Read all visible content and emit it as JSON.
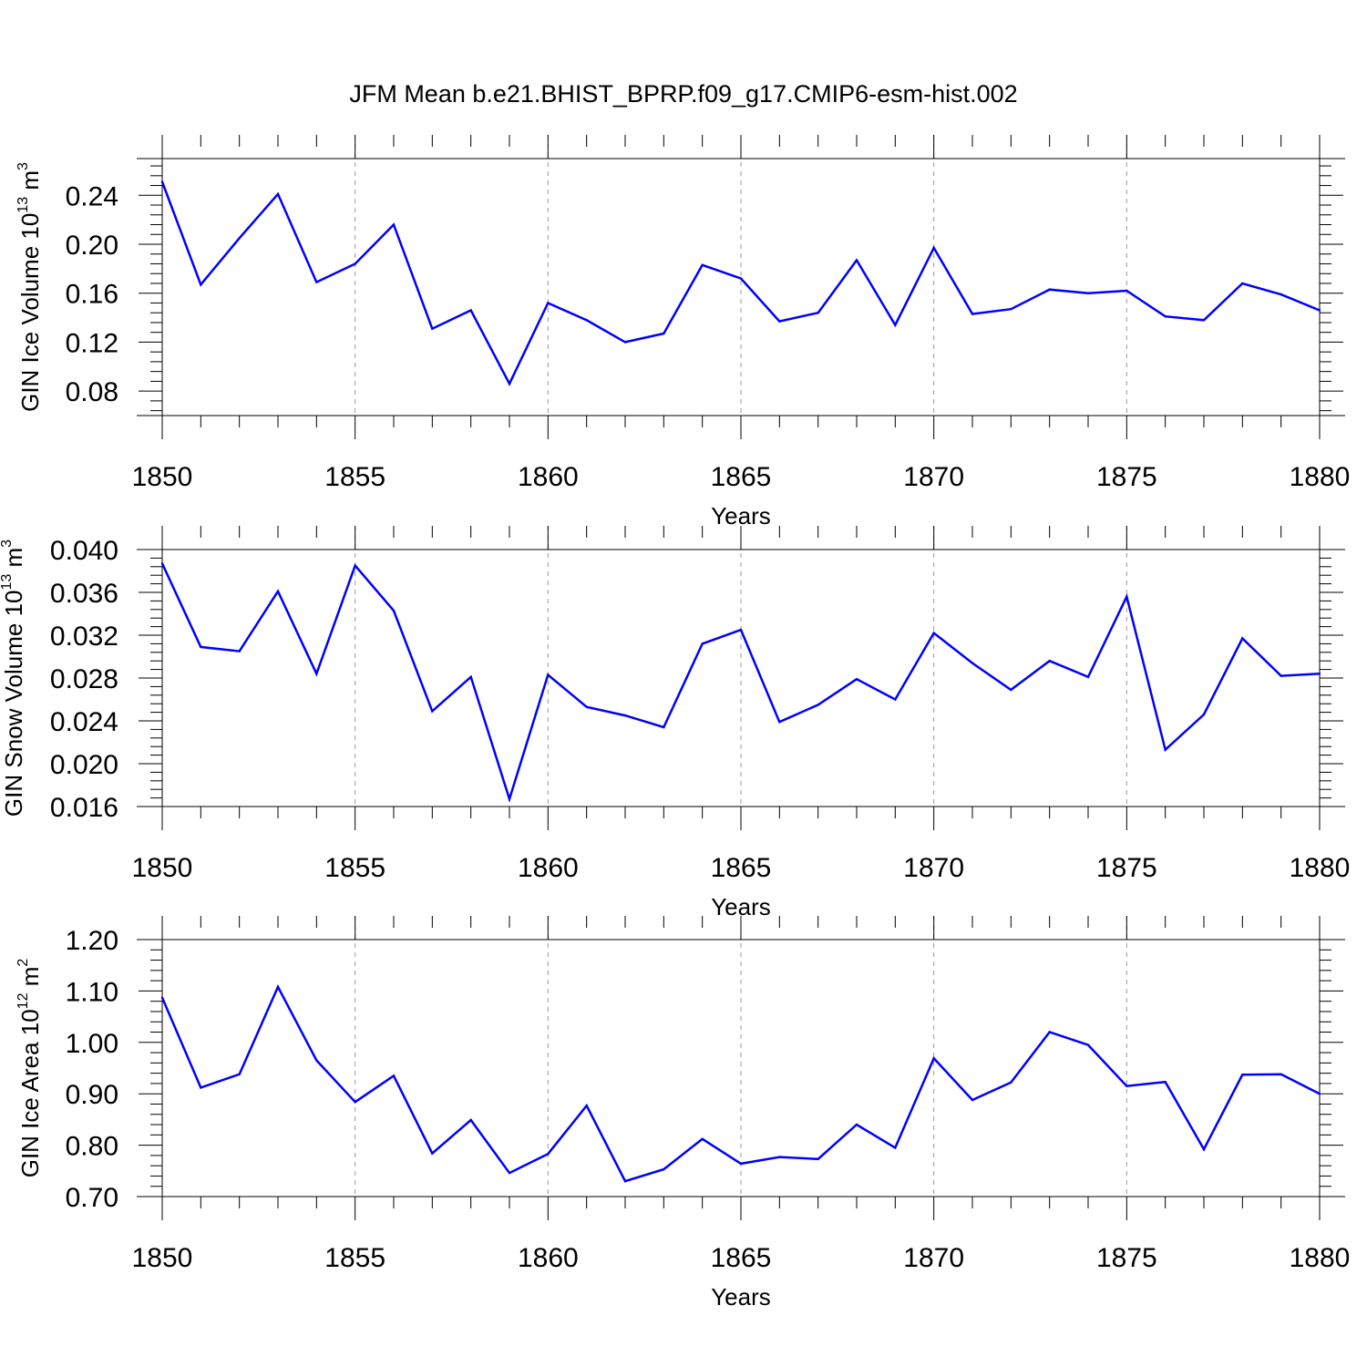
{
  "title": "JFM Mean b.e21.BHIST_BPRP.f09_g17.CMIP6-esm-hist.002",
  "line_color": "#0000ff",
  "chart_data": [
    {
      "type": "line",
      "xlabel": "Years",
      "ylabel": {
        "prefix": "GIN Ice Volume 10",
        "exp": "13",
        "unit": " m",
        "unit_exp": "3"
      },
      "xlim": [
        1850,
        1880
      ],
      "ylim": [
        0.06,
        0.27
      ],
      "xticks": [
        1850,
        1855,
        1860,
        1865,
        1870,
        1875,
        1880
      ],
      "xtick_labels": [
        "1850",
        "1855",
        "1860",
        "1865",
        "1870",
        "1875",
        "1880"
      ],
      "yticks": [
        0.08,
        0.12,
        0.16,
        0.2,
        0.24
      ],
      "ytick_labels": [
        "0.08",
        "0.12",
        "0.16",
        "0.20",
        "0.24"
      ],
      "grid": "dashed vertical at major x ticks",
      "x": [
        1850,
        1851,
        1852,
        1853,
        1854,
        1855,
        1856,
        1857,
        1858,
        1859,
        1860,
        1861,
        1862,
        1863,
        1864,
        1865,
        1866,
        1867,
        1868,
        1869,
        1870,
        1871,
        1872,
        1873,
        1874,
        1875,
        1876,
        1877,
        1878,
        1879,
        1880
      ],
      "y": [
        0.251,
        0.167,
        0.205,
        0.241,
        0.169,
        0.184,
        0.216,
        0.131,
        0.146,
        0.086,
        0.152,
        0.138,
        0.12,
        0.127,
        0.183,
        0.172,
        0.137,
        0.144,
        0.187,
        0.134,
        0.197,
        0.143,
        0.147,
        0.163,
        0.16,
        0.162,
        0.141,
        0.138,
        0.168,
        0.159,
        0.146
      ]
    },
    {
      "type": "line",
      "xlabel": "Years",
      "ylabel": {
        "prefix": "GIN Snow Volume 10",
        "exp": "13",
        "unit": " m",
        "unit_exp": "3"
      },
      "xlim": [
        1850,
        1880
      ],
      "ylim": [
        0.016,
        0.04
      ],
      "xticks": [
        1850,
        1855,
        1860,
        1865,
        1870,
        1875,
        1880
      ],
      "xtick_labels": [
        "1850",
        "1855",
        "1860",
        "1865",
        "1870",
        "1875",
        "1880"
      ],
      "yticks": [
        0.016,
        0.02,
        0.024,
        0.028,
        0.032,
        0.036,
        0.04
      ],
      "ytick_labels": [
        "0.016",
        "0.020",
        "0.024",
        "0.028",
        "0.032",
        "0.036",
        "0.040"
      ],
      "grid": "dashed vertical at major x ticks",
      "x": [
        1850,
        1851,
        1852,
        1853,
        1854,
        1855,
        1856,
        1857,
        1858,
        1859,
        1860,
        1861,
        1862,
        1863,
        1864,
        1865,
        1866,
        1867,
        1868,
        1869,
        1870,
        1871,
        1872,
        1873,
        1874,
        1875,
        1876,
        1877,
        1878,
        1879,
        1880
      ],
      "y": [
        0.0387,
        0.0309,
        0.0305,
        0.0361,
        0.0284,
        0.0385,
        0.0343,
        0.0249,
        0.0281,
        0.0167,
        0.0283,
        0.0253,
        0.0245,
        0.0234,
        0.0312,
        0.0325,
        0.0239,
        0.0255,
        0.0279,
        0.026,
        0.0322,
        0.0294,
        0.0269,
        0.0296,
        0.0281,
        0.0356,
        0.0213,
        0.0246,
        0.0317,
        0.0282,
        0.0284
      ]
    },
    {
      "type": "line",
      "xlabel": "Years",
      "ylabel": {
        "prefix": "GIN Ice Area 10",
        "exp": "12",
        "unit": " m",
        "unit_exp": "2"
      },
      "xlim": [
        1850,
        1880
      ],
      "ylim": [
        0.7,
        1.2
      ],
      "xticks": [
        1850,
        1855,
        1860,
        1865,
        1870,
        1875,
        1880
      ],
      "xtick_labels": [
        "1850",
        "1855",
        "1860",
        "1865",
        "1870",
        "1875",
        "1880"
      ],
      "yticks": [
        0.7,
        0.8,
        0.9,
        1.0,
        1.1,
        1.2
      ],
      "ytick_labels": [
        "0.70",
        "0.80",
        "0.90",
        "1.00",
        "1.10",
        "1.20"
      ],
      "grid": "dashed vertical at major x ticks",
      "x": [
        1850,
        1851,
        1852,
        1853,
        1854,
        1855,
        1856,
        1857,
        1858,
        1859,
        1860,
        1861,
        1862,
        1863,
        1864,
        1865,
        1866,
        1867,
        1868,
        1869,
        1870,
        1871,
        1872,
        1873,
        1874,
        1875,
        1876,
        1877,
        1878,
        1879,
        1880
      ],
      "y": [
        1.087,
        0.912,
        0.938,
        1.108,
        0.965,
        0.884,
        0.935,
        0.784,
        0.849,
        0.746,
        0.783,
        0.877,
        0.73,
        0.753,
        0.812,
        0.764,
        0.777,
        0.773,
        0.84,
        0.795,
        0.969,
        0.888,
        0.922,
        1.02,
        0.995,
        0.915,
        0.923,
        0.792,
        0.937,
        0.938,
        0.9
      ]
    }
  ]
}
